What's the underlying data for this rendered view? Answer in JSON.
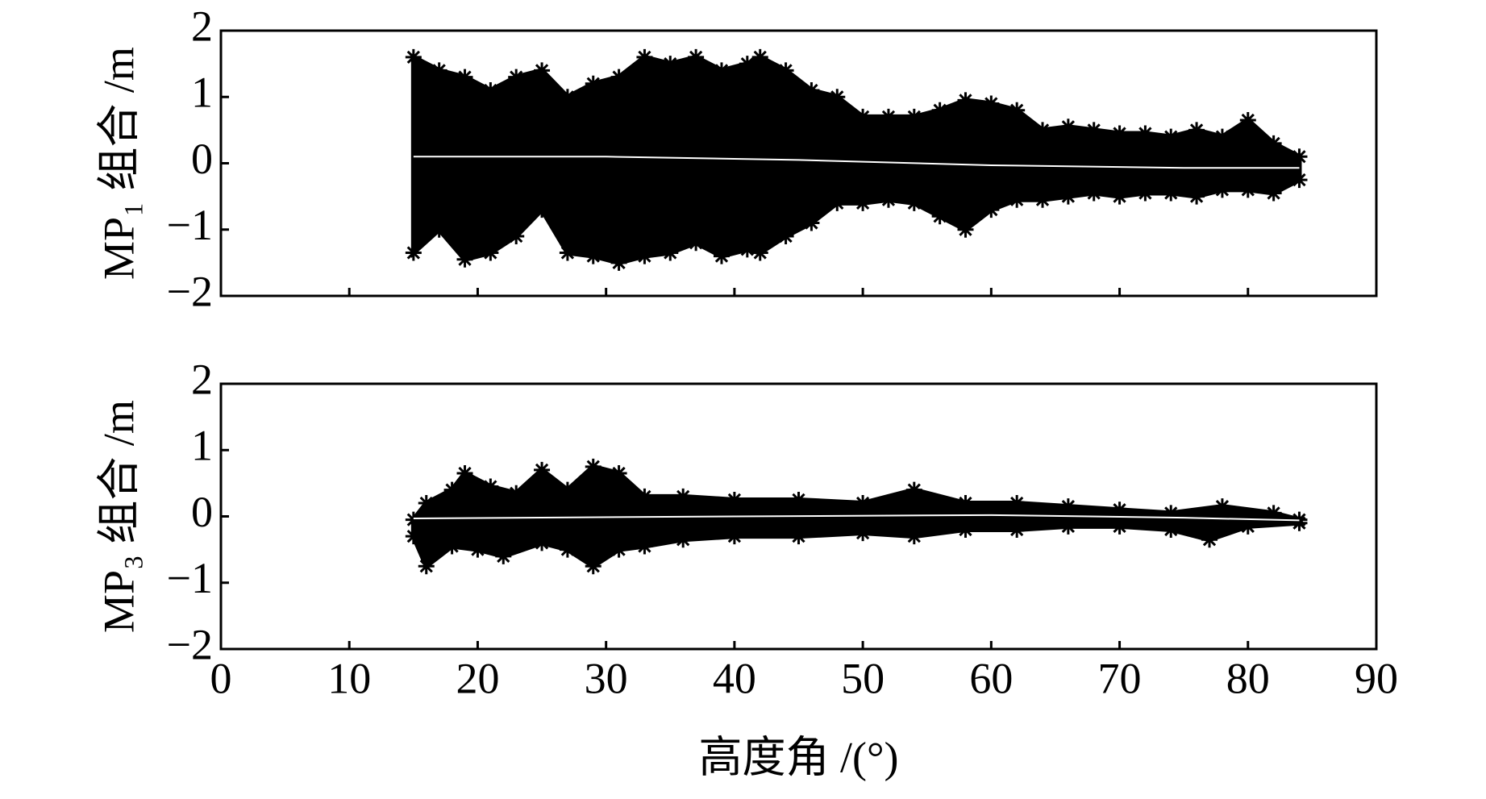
{
  "chart_data": [
    {
      "type": "scatter",
      "ylabel": "MP₁ 组合 /m",
      "xlim": [
        0,
        90
      ],
      "xticks": [
        0,
        10,
        20,
        30,
        40,
        50,
        60,
        70,
        80,
        90
      ],
      "show_xtick_labels": false,
      "ylim": [
        -2,
        2
      ],
      "yticks": [
        {
          "value": -2,
          "label": "−2"
        },
        {
          "value": -1,
          "label": "−1"
        },
        0,
        1,
        2
      ],
      "marker": "*",
      "fill_between": true,
      "series": [
        {
          "color": "#000000",
          "x": [
            15,
            17,
            19,
            21,
            23,
            25,
            27,
            29,
            31,
            33,
            35,
            37,
            39,
            41,
            42,
            44,
            46,
            48,
            50,
            52,
            54,
            56,
            58,
            60,
            62,
            64,
            66,
            68,
            70,
            72,
            74,
            76,
            78,
            80,
            82,
            84
          ],
          "values": [
            1.6,
            1.4,
            1.3,
            1.1,
            1.3,
            1.4,
            1.0,
            1.2,
            1.3,
            1.6,
            1.5,
            1.6,
            1.4,
            1.5,
            1.6,
            1.4,
            1.1,
            1.0,
            0.7,
            0.7,
            0.7,
            0.8,
            0.95,
            0.9,
            0.8,
            0.5,
            0.55,
            0.5,
            0.45,
            0.45,
            0.4,
            0.5,
            0.4,
            0.65,
            0.3,
            0.1
          ]
        },
        {
          "color": "#000000",
          "x": [
            15,
            17,
            19,
            21,
            23,
            25,
            27,
            29,
            31,
            33,
            35,
            37,
            39,
            41,
            42,
            44,
            46,
            48,
            50,
            52,
            54,
            56,
            58,
            60,
            62,
            64,
            66,
            68,
            70,
            72,
            74,
            76,
            78,
            80,
            82,
            84
          ],
          "values": [
            -1.35,
            -1.0,
            -1.45,
            -1.35,
            -1.1,
            -0.7,
            -1.35,
            -1.4,
            -1.5,
            -1.4,
            -1.35,
            -1.2,
            -1.4,
            -1.3,
            -1.35,
            -1.1,
            -0.9,
            -0.6,
            -0.6,
            -0.55,
            -0.6,
            -0.8,
            -1.0,
            -0.7,
            -0.55,
            -0.55,
            -0.5,
            -0.45,
            -0.5,
            -0.45,
            -0.45,
            -0.5,
            -0.4,
            -0.4,
            -0.45,
            -0.25
          ]
        }
      ],
      "fit": {
        "color": "#ffffff",
        "x": [
          15,
          30,
          45,
          60,
          75,
          84
        ],
        "values": [
          0.1,
          0.1,
          0.05,
          -0.03,
          -0.07,
          -0.07
        ]
      }
    },
    {
      "type": "scatter",
      "ylabel": "MP₃ 组合 /m",
      "xlabel": "高度角 /(°)",
      "xlim": [
        0,
        90
      ],
      "xticks": [
        0,
        10,
        20,
        30,
        40,
        50,
        60,
        70,
        80,
        90
      ],
      "show_xtick_labels": true,
      "ylim": [
        -2,
        2
      ],
      "yticks": [
        {
          "value": -2,
          "label": "−2"
        },
        {
          "value": -1,
          "label": "−1"
        },
        0,
        1,
        2
      ],
      "marker": "*",
      "fill_between": true,
      "series": [
        {
          "color": "#000000",
          "x": [
            15,
            16,
            18,
            19,
            21,
            23,
            25,
            27,
            29,
            31,
            33,
            36,
            40,
            45,
            50,
            54,
            58,
            62,
            66,
            70,
            74,
            78,
            82,
            84
          ],
          "values": [
            -0.05,
            0.2,
            0.4,
            0.65,
            0.45,
            0.35,
            0.7,
            0.4,
            0.75,
            0.65,
            0.3,
            0.3,
            0.25,
            0.25,
            0.2,
            0.4,
            0.2,
            0.2,
            0.15,
            0.1,
            0.05,
            0.15,
            0.05,
            -0.05
          ]
        },
        {
          "color": "#000000",
          "x": [
            15,
            16,
            18,
            20,
            22,
            25,
            27,
            29,
            31,
            33,
            36,
            40,
            45,
            50,
            54,
            58,
            62,
            66,
            70,
            74,
            77,
            80,
            84
          ],
          "values": [
            -0.3,
            -0.75,
            -0.45,
            -0.5,
            -0.6,
            -0.4,
            -0.5,
            -0.75,
            -0.5,
            -0.45,
            -0.35,
            -0.3,
            -0.3,
            -0.25,
            -0.3,
            -0.2,
            -0.2,
            -0.15,
            -0.15,
            -0.2,
            -0.35,
            -0.15,
            -0.1
          ]
        }
      ],
      "fit": {
        "color": "#ffffff",
        "x": [
          15,
          40,
          60,
          75,
          84
        ],
        "values": [
          -0.03,
          0.0,
          0.02,
          -0.02,
          -0.06
        ]
      }
    }
  ]
}
